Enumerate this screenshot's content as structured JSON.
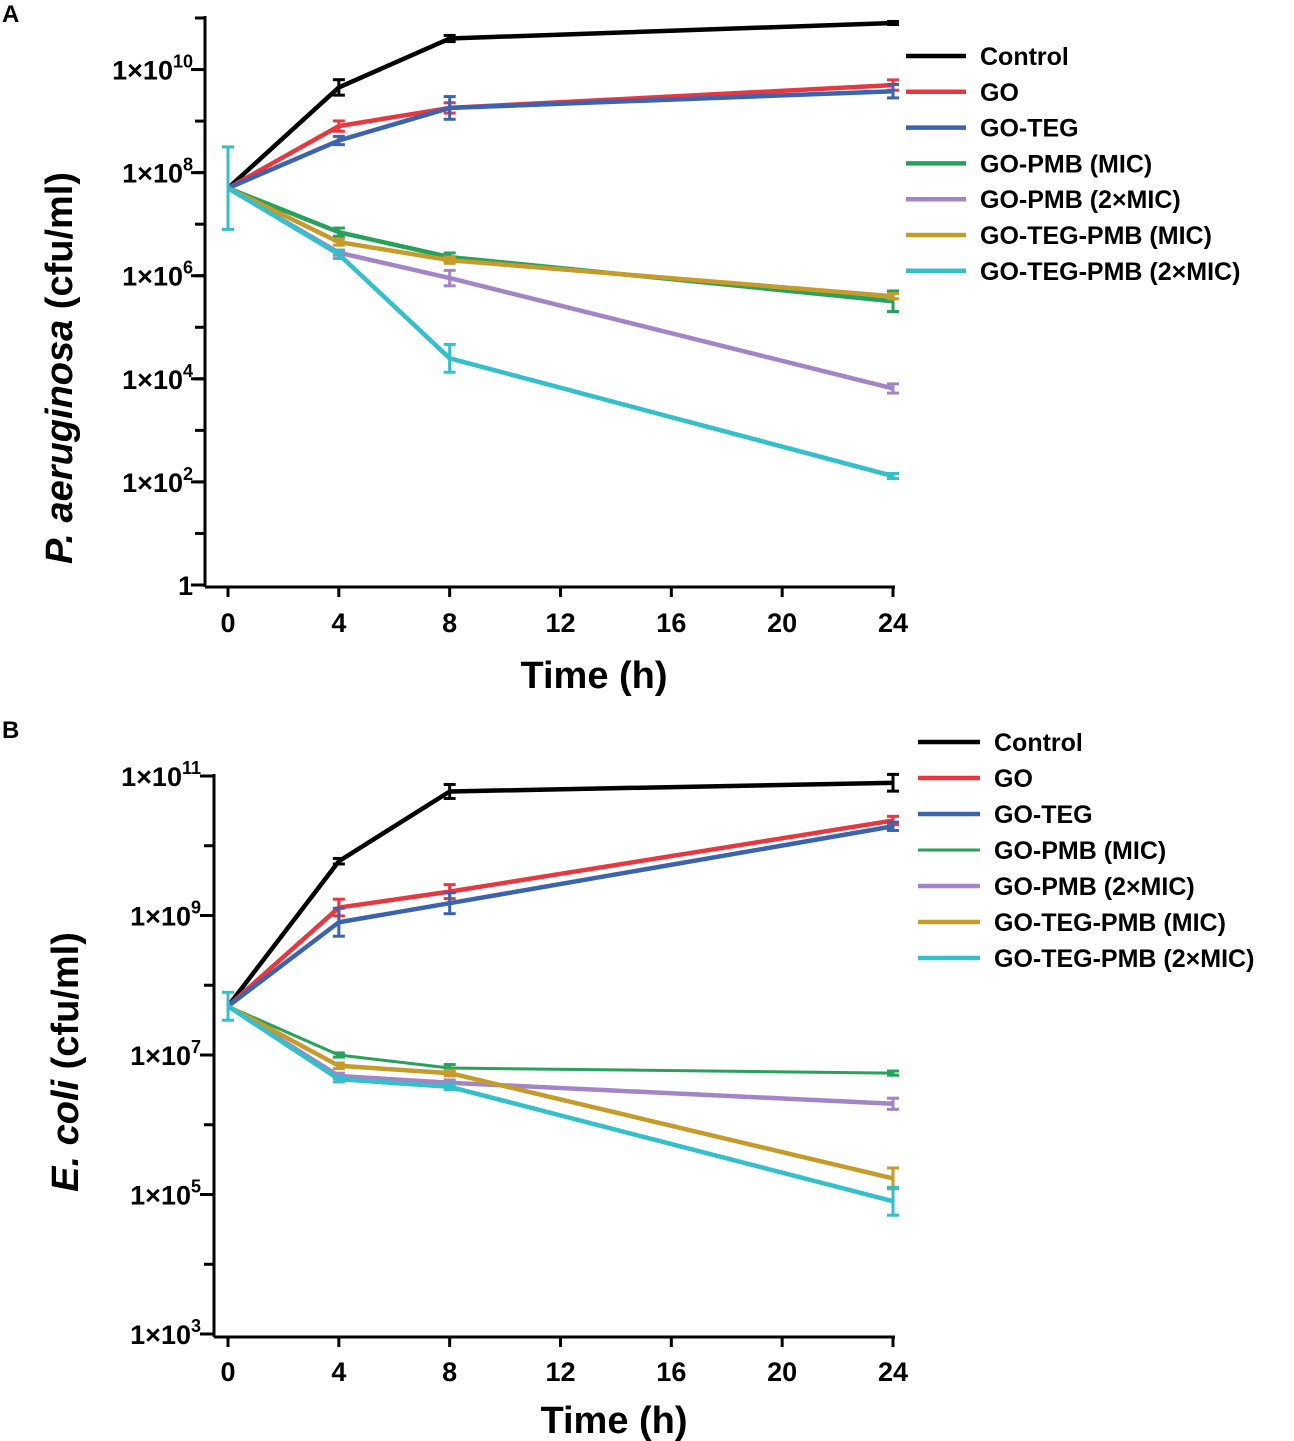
{
  "chart_data": [
    {
      "type": "line",
      "panel_label": "A",
      "xlabel": "Time (h)",
      "ylabel_italic": "P. aeruginosa",
      "ylabel_rest": " (cfu/ml)",
      "yscale": "log",
      "xlim": [
        0,
        24
      ],
      "ylim_exp": [
        0,
        11
      ],
      "x_ticks": [
        0,
        4,
        8,
        12,
        16,
        20,
        24
      ],
      "x_tick_labels": [
        "0",
        "4",
        "8",
        "12",
        "16",
        "20",
        "24"
      ],
      "y_ticks": [
        {
          "exp": 0,
          "label": "1",
          "sup": ""
        },
        {
          "exp": 2,
          "label": "1×10",
          "sup": "2"
        },
        {
          "exp": 4,
          "label": "1×10",
          "sup": "4"
        },
        {
          "exp": 6,
          "label": "1×10",
          "sup": "6"
        },
        {
          "exp": 8,
          "label": "1×10",
          "sup": "8"
        },
        {
          "exp": 10,
          "label": "1×10",
          "sup": "10"
        }
      ],
      "series": [
        {
          "name": "Control",
          "color": "#000000",
          "x": [
            0,
            4,
            8,
            24
          ],
          "y": [
            50000000,
            4500000000,
            40000000000,
            80000000000
          ],
          "err": [
            0,
            0.15,
            0.06,
            0.03
          ]
        },
        {
          "name": "GO",
          "color": "#e8373f",
          "x": [
            0,
            4,
            8,
            24
          ],
          "y": [
            50000000,
            800000000,
            1800000000,
            5000000000
          ],
          "err": [
            0,
            0.1,
            0.1,
            0.1
          ]
        },
        {
          "name": "GO-TEG",
          "color": "#3b63b0",
          "x": [
            0,
            4,
            8,
            24
          ],
          "y": [
            50000000,
            420000000,
            1800000000,
            3800000000
          ],
          "err": [
            0,
            0.08,
            0.22,
            0.13
          ]
        },
        {
          "name": "GO-PMB (MIC)",
          "color": "#26a25a",
          "x": [
            0,
            4,
            8,
            24
          ],
          "y": [
            50000000,
            7000000,
            2300000,
            320000
          ],
          "err": [
            0,
            0.08,
            0.08,
            0.2
          ]
        },
        {
          "name": "GO-PMB (2×MIC)",
          "color": "#a384c7",
          "x": [
            0,
            4,
            8,
            24
          ],
          "y": [
            50000000,
            2800000,
            900000,
            6500
          ],
          "err": [
            0,
            0.05,
            0.15,
            0.09
          ]
        },
        {
          "name": "GO-TEG-PMB (MIC)",
          "color": "#c69b2a",
          "x": [
            0,
            4,
            8,
            24
          ],
          "y": [
            50000000,
            4500000,
            2000000,
            400000
          ],
          "err": [
            0,
            0.06,
            0.06,
            0.05
          ]
        },
        {
          "name": "GO-TEG-PMB (2×MIC)",
          "color": "#33bfcc",
          "x": [
            0,
            4,
            8,
            24
          ],
          "y": [
            50000000,
            2600000,
            25000,
            130
          ],
          "err": [
            0.8,
            0.08,
            0.27,
            0.05
          ]
        }
      ]
    },
    {
      "type": "line",
      "panel_label": "B",
      "xlabel": "Time (h)",
      "ylabel_italic": "E. coli",
      "ylabel_rest": " (cfu/ml)",
      "yscale": "log",
      "xlim": [
        0,
        24
      ],
      "ylim_exp": [
        3,
        11
      ],
      "x_ticks": [
        0,
        4,
        8,
        12,
        16,
        20,
        24
      ],
      "x_tick_labels": [
        "0",
        "4",
        "8",
        "12",
        "16",
        "20",
        "24"
      ],
      "y_ticks": [
        {
          "exp": 3,
          "label": "1×10",
          "sup": "3"
        },
        {
          "exp": 5,
          "label": "1×10",
          "sup": "5"
        },
        {
          "exp": 7,
          "label": "1×10",
          "sup": "7"
        },
        {
          "exp": 9,
          "label": "1×10",
          "sup": "9"
        },
        {
          "exp": 11,
          "label": "1×10",
          "sup": "11"
        }
      ],
      "series": [
        {
          "name": "Control",
          "color": "#000000",
          "x": [
            0,
            4,
            8,
            24
          ],
          "y": [
            50000000,
            6000000000,
            60000000000,
            80000000000
          ],
          "err": [
            0,
            0.04,
            0.1,
            0.12
          ]
        },
        {
          "name": "GO",
          "color": "#e8373f",
          "x": [
            0,
            4,
            8,
            24
          ],
          "y": [
            50000000,
            1300000000,
            2200000000,
            23000000000
          ],
          "err": [
            0,
            0.12,
            0.1,
            0.06
          ]
        },
        {
          "name": "GO-TEG",
          "color": "#3b63b0",
          "x": [
            0,
            4,
            8,
            24
          ],
          "y": [
            50000000,
            800000000,
            1500000000,
            19000000000
          ],
          "err": [
            0,
            0.2,
            0.15,
            0.06
          ]
        },
        {
          "name": "GO-PMB (MIC)",
          "color": "#26a25a",
          "x": [
            0,
            4,
            8,
            24
          ],
          "y": [
            50000000,
            10000000,
            6500000,
            5500000
          ],
          "err": [
            0,
            0.03,
            0.05,
            0.03
          ]
        },
        {
          "name": "GO-PMB (2×MIC)",
          "color": "#a384c7",
          "x": [
            0,
            4,
            8,
            24
          ],
          "y": [
            50000000,
            5000000,
            4000000,
            2000000
          ],
          "err": [
            0,
            0.04,
            0.04,
            0.08
          ]
        },
        {
          "name": "GO-TEG-PMB (MIC)",
          "color": "#c69b2a",
          "x": [
            0,
            4,
            8,
            24
          ],
          "y": [
            50000000,
            7000000,
            5500000,
            170000
          ],
          "err": [
            0,
            0.04,
            0.04,
            0.15
          ]
        },
        {
          "name": "GO-TEG-PMB (2×MIC)",
          "color": "#33bfcc",
          "x": [
            0,
            4,
            8,
            24
          ],
          "y": [
            50000000,
            4500000,
            3500000,
            80000
          ],
          "err": [
            0.2,
            0.04,
            0.04,
            0.2
          ]
        }
      ]
    }
  ]
}
